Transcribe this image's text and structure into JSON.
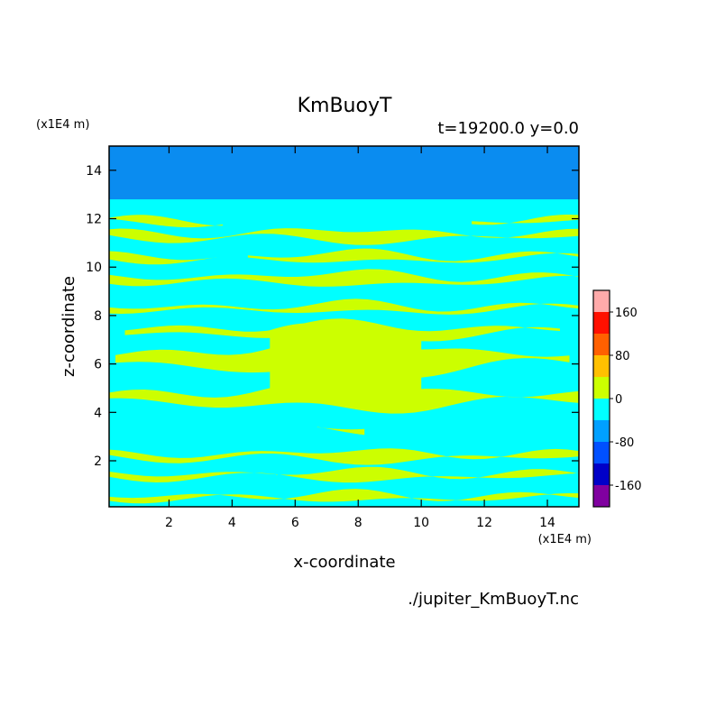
{
  "chart_data": {
    "type": "contour",
    "title": "KmBuoyT",
    "subtitle": "t=19200.0 y=0.0",
    "xlabel": "x-coordinate",
    "ylabel": "z-coordinate",
    "x_unit": "(x1E4 m)",
    "y_unit": "(x1E4 m)",
    "xlim": [
      0.1,
      15
    ],
    "ylim": [
      0.1,
      15
    ],
    "x_ticks": [
      "2",
      "4",
      "6",
      "8",
      "10",
      "12",
      "14"
    ],
    "y_ticks": [
      "2",
      "4",
      "6",
      "8",
      "10",
      "12",
      "14"
    ],
    "x_tick_values": [
      2,
      4,
      6,
      8,
      10,
      12,
      14
    ],
    "y_tick_values": [
      2,
      4,
      6,
      8,
      10,
      12,
      14
    ],
    "top_layer": {
      "z_min": 12.8,
      "z_max": 15,
      "level_color": "#0a8cf0"
    },
    "background_color": "#00ffff",
    "band_color": "#ccff00",
    "bands": [
      {
        "zc": 11.9,
        "h": 0.2,
        "x0": 4.5,
        "x1": 10.5,
        "seg": [
          [
            0.1,
            3.7
          ],
          [
            11.6,
            15
          ]
        ]
      },
      {
        "zc": 11.3,
        "h": 0.4,
        "x0": 0.1,
        "x1": 15
      },
      {
        "zc": 10.4,
        "h": 0.3,
        "x0": 0.1,
        "x1": 15,
        "gap": [
          3.5,
          4.5
        ]
      },
      {
        "zc": 9.5,
        "h": 0.45,
        "x0": 0.1,
        "x1": 15
      },
      {
        "zc": 8.3,
        "h": 0.3,
        "x0": 0.1,
        "x1": 15
      },
      {
        "zc": 7.35,
        "h": 0.55,
        "x0": 0.6,
        "x1": 14.4
      },
      {
        "zc": 6.2,
        "h": 1.3,
        "x0": 0.3,
        "x1": 14.7
      },
      {
        "zc": 4.6,
        "h": 0.9,
        "x0": 0.1,
        "x1": 15
      },
      {
        "zc": 3.3,
        "h": 0.1,
        "x0": 6.7,
        "x1": 8.2
      },
      {
        "zc": 2.2,
        "h": 0.35,
        "x0": 0.1,
        "x1": 15
      },
      {
        "zc": 1.4,
        "h": 0.3,
        "x0": 0.1,
        "x1": 15
      },
      {
        "zc": 0.5,
        "h": 0.2,
        "x0": 0.1,
        "x1": 15
      }
    ],
    "colorbar": {
      "levels": [
        -200,
        -160,
        -120,
        -80,
        -40,
        0,
        40,
        80,
        120,
        160,
        200
      ],
      "colors": [
        "#8000a0",
        "#0000c8",
        "#0050ff",
        "#00a0ff",
        "#00ffff",
        "#ccff00",
        "#ffc000",
        "#ff6000",
        "#ff1000",
        "#ffaaaa"
      ],
      "labels": [
        "-160",
        "-80",
        "0",
        "80",
        "160"
      ],
      "label_values": [
        -160,
        -80,
        0,
        80,
        160
      ]
    },
    "caption": "./jupiter_KmBuoyT.nc"
  }
}
